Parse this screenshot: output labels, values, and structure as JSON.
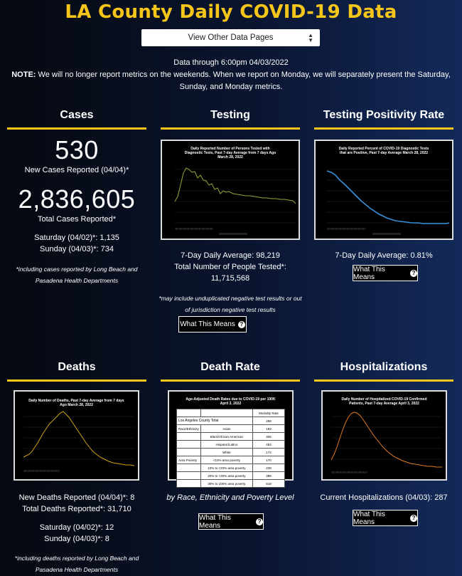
{
  "page_title": "LA County Daily COVID-19 Data",
  "nav_select": {
    "selected": "View Other Data Pages"
  },
  "data_through": "Data through 6:00pm 04/03/2022",
  "note": {
    "label": "NOTE:",
    "text": " We will no longer report metrics on the weekends. When we report on Monday, we will separately present the Saturday, Sunday, and Monday metrics."
  },
  "cases": {
    "title": "Cases",
    "new_value": "530",
    "new_label": "New Cases Reported (04/04)*",
    "total_value": "2,836,605",
    "total_label": "Total Cases Reported*",
    "saturday": "Saturday (04/02)*: 1,135",
    "sunday": "Sunday (04/03)*: 734",
    "footnote": "*including cases reported by Long Beach and Pasadena Health Departments"
  },
  "testing": {
    "title": "Testing",
    "chart_title": "Daily Reported Number of Persons Tested with Diagnostic Tests, Past 7-day Average from 7 days Ago March 28, 2022",
    "avg": "7-Day Daily Average: 98,219",
    "total_label": "Total Number of People Tested*:",
    "total_value": "11,715,568",
    "footnote": "*may include unduplicated negative test results or out of jurisdiction negative test results",
    "button": "What This Means"
  },
  "positivity": {
    "title": "Testing Positivity Rate",
    "chart_title": "Daily Reported Percent of COVID-19 Diagnostic Tests that are Positive, Past 7-day Average March 28, 2022",
    "avg": "7-Day Daily Average: 0.81%",
    "button": "What This Means"
  },
  "deaths": {
    "title": "Deaths",
    "chart_title": "Daily Number of Deaths, Past 7-day Average from 7 days Ago March 28, 2022",
    "new": "New Deaths Reported (04/04)*: 8",
    "total": "Total Deaths Reported*: 31,710",
    "saturday": "Saturday (04/02)*: 12",
    "sunday": "Sunday (04/03)*: 8",
    "footnote": "*including deaths reported by Long Beach and Pasadena Health Departments"
  },
  "death_rate": {
    "title": "Death Rate",
    "chart_title": "Age-Adjusted Death Rates due to COVID-19 per 100K April 3, 2022",
    "header": "Mortality Rate",
    "total_row": {
      "label": "Los Angeles County Total",
      "value": "289"
    },
    "group1": "Race/Ethnicity",
    "group2": "Area Poverty",
    "rows": [
      {
        "label": "Asian",
        "value": "193"
      },
      {
        "label": "Black/African American",
        "value": "305"
      },
      {
        "label": "Hispanic/Latino",
        "value": "453"
      },
      {
        "label": "White",
        "value": "174"
      },
      {
        "label": "<10% area poverty",
        "value": "170"
      },
      {
        "label": "10% to <20% area poverty",
        "value": "239"
      },
      {
        "label": "20% to <30% area poverty",
        "value": "398"
      },
      {
        "label": "30% to 100% area poverty",
        "value": "518"
      }
    ],
    "caption": "by Race, Ethnicity and Poverty Level",
    "button": "What This Means"
  },
  "hospitalizations": {
    "title": "Hospitalizations",
    "chart_title": "Daily Number of Hospitalized COVID-19 Confirmed Patients, Past 7-day Average April 3, 2022",
    "current": "Current Hospitalizations (04/03): 287",
    "button": "What This Means"
  },
  "colors": {
    "accent": "#f5c51a",
    "testing_line": "#9aa63a",
    "positivity_line": "#3a8fd8",
    "deaths_line": "#d4a21a",
    "hosp_line": "#e07b22"
  }
}
